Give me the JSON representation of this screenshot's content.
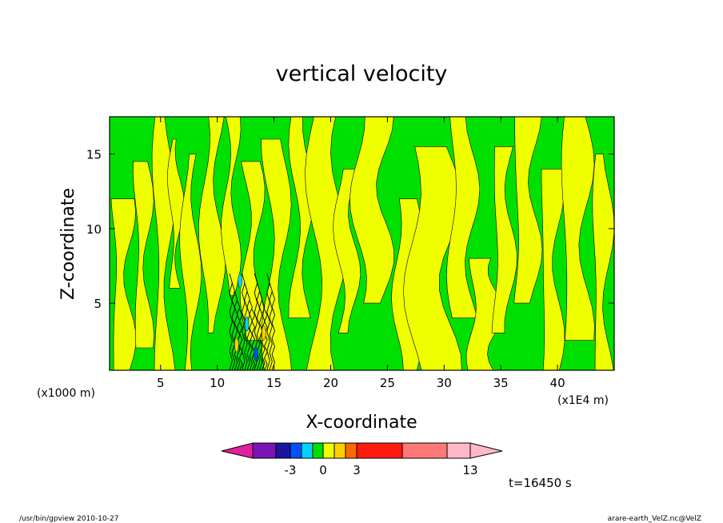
{
  "chart_data": {
    "type": "heatmap",
    "title": "vertical velocity",
    "xlabel": "X-coordinate",
    "ylabel": "Z-coordinate",
    "x_units_left": "(x1000 m)",
    "x_units_right": "(x1E4 m)",
    "xlim": [
      0.5,
      45
    ],
    "ylim": [
      0.5,
      17.5
    ],
    "x_ticks": [
      "5",
      "10",
      "15",
      "20",
      "25",
      "30",
      "35",
      "40"
    ],
    "x_tick_values": [
      5,
      10,
      15,
      20,
      25,
      30,
      35,
      40
    ],
    "y_ticks": [
      "5",
      "10",
      "15"
    ],
    "y_tick_values": [
      5,
      10,
      15
    ],
    "field_colors": {
      "near_zero_negative": "#00e000",
      "near_zero_positive": "#f0ff00",
      "contour_line": "#000000"
    },
    "colorbar": {
      "labels": [
        "-3",
        "0",
        "3",
        "13"
      ],
      "label_values": [
        -3,
        0,
        3,
        13
      ],
      "colors": [
        "#e020a0",
        "#7a14b4",
        "#1a14a0",
        "#0050ff",
        "#00d4ff",
        "#00e000",
        "#f0ff00",
        "#ffd000",
        "#ff6a00",
        "#ff1a10",
        "#ff7878",
        "#ffb8c8"
      ],
      "min_arrow": true,
      "max_arrow": true
    },
    "time_label": "t=16450 s"
  },
  "footer": {
    "left": "/usr/bin/gpview   2010-10-27",
    "right": "arare-earth_VelZ.nc@VelZ"
  }
}
